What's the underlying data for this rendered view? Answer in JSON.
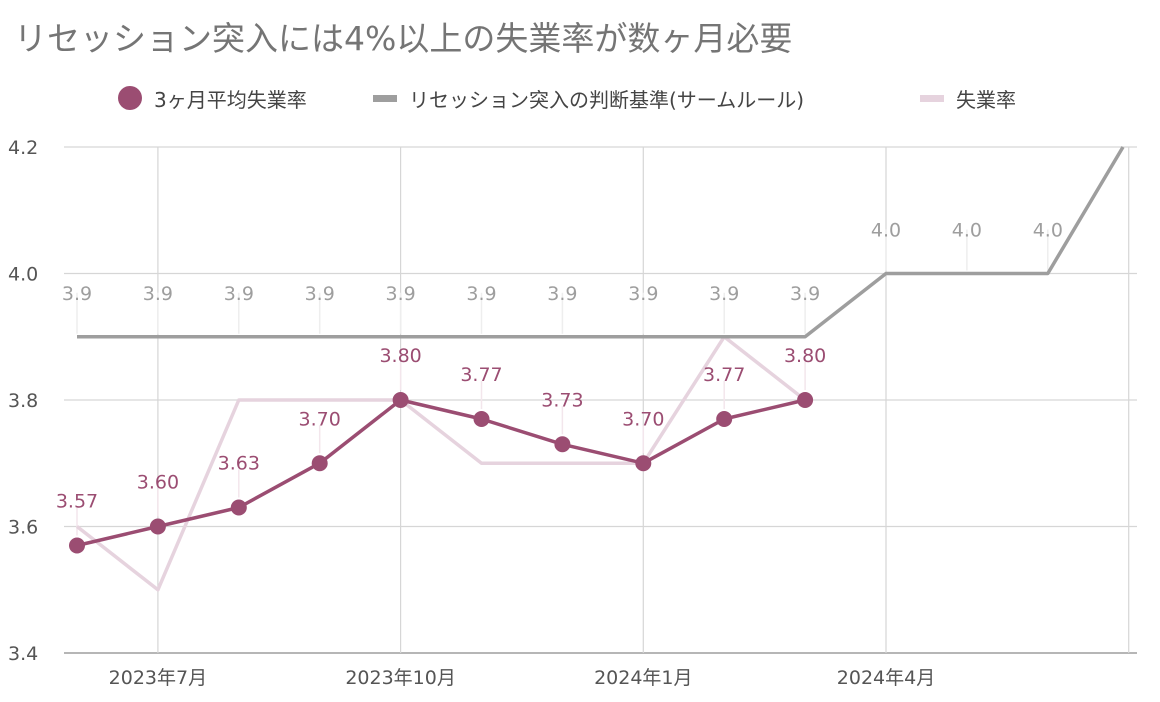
{
  "chart_data": {
    "type": "line",
    "title": "リセッション突入には4%以上の失業率が数ヶ月必要",
    "x": [
      "2023-06",
      "2023-07",
      "2023-08",
      "2023-09",
      "2023-10",
      "2023-11",
      "2023-12",
      "2024-01",
      "2024-02",
      "2024-03",
      "2024-04",
      "2024-05",
      "2024-06",
      "2024-07"
    ],
    "x_tick_labels": [
      "2023年7月",
      "2023年10月",
      "2024年1月",
      "2024年4月"
    ],
    "x_tick_values": [
      "2023-07",
      "2023-10",
      "2024-01",
      "2024-04"
    ],
    "ylim": [
      3.4,
      4.2
    ],
    "y_ticks": [
      3.4,
      3.6,
      3.8,
      4.0,
      4.2
    ],
    "y_tick_labels": [
      "3.4",
      "3.6",
      "3.8",
      "4.0",
      "4.2"
    ],
    "grid": true,
    "legend_position": "top",
    "series": [
      {
        "name": "3ヶ月平均失業率",
        "color": "#9b4d72",
        "style": "line-with-markers",
        "values": [
          3.57,
          3.6,
          3.63,
          3.7,
          3.8,
          3.77,
          3.73,
          3.7,
          3.77,
          3.8,
          null,
          null,
          null,
          null
        ],
        "data_labels": [
          "3.57",
          "3.60",
          "3.63",
          "3.70",
          "3.80",
          "3.77",
          "3.73",
          "3.70",
          "3.77",
          "3.80",
          null,
          null,
          null,
          null
        ]
      },
      {
        "name": "リセッション突入の判断基準(サームルール)",
        "color": "#9e9e9e",
        "style": "line",
        "values": [
          3.9,
          3.9,
          3.9,
          3.9,
          3.9,
          3.9,
          3.9,
          3.9,
          3.9,
          3.9,
          4.0,
          4.0,
          4.0,
          4.2
        ],
        "data_labels": [
          "3.9",
          "3.9",
          "3.9",
          "3.9",
          "3.9",
          "3.9",
          "3.9",
          "3.9",
          "3.9",
          "3.9",
          "4.0",
          "4.0",
          "4.0",
          null
        ]
      },
      {
        "name": "失業率",
        "color": "#e6d3de",
        "style": "line",
        "values": [
          3.6,
          3.5,
          3.8,
          3.8,
          3.8,
          3.7,
          3.7,
          3.7,
          3.9,
          3.8,
          null,
          null,
          null,
          null
        ]
      }
    ]
  }
}
